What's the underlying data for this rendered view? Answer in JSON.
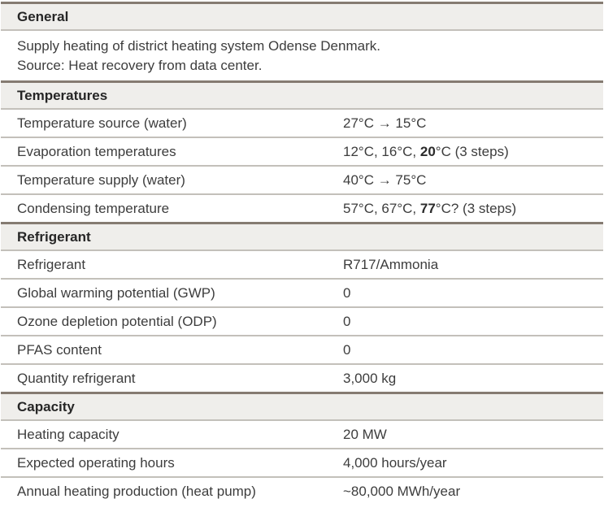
{
  "colors": {
    "header_bg": "#efeeeb",
    "rule_dark": "#857b71",
    "rule_light": "#c3c0ba",
    "text": "#3d3d3d",
    "header_text": "#262626"
  },
  "table": {
    "sections": [
      {
        "id": "general",
        "title": "General",
        "lines": [
          "Supply heating of district heating system Odense Denmark.",
          "Source: Heat recovery from data center."
        ]
      },
      {
        "id": "temperatures",
        "title": "Temperatures",
        "rows": [
          {
            "label": "Temperature source (water)",
            "value_parts": [
              {
                "text": "27°C → 15°C"
              }
            ]
          },
          {
            "label": "Evaporation temperatures",
            "value_parts": [
              {
                "text": "12°C, 16°C, "
              },
              {
                "text": "20",
                "bold": true
              },
              {
                "text": "°C (3 steps)"
              }
            ]
          },
          {
            "label": "Temperature supply (water)",
            "value_parts": [
              {
                "text": "40°C → 75°C"
              }
            ]
          },
          {
            "label": "Condensing temperature",
            "value_parts": [
              {
                "text": "57°C, 67°C, "
              },
              {
                "text": "77",
                "bold": true
              },
              {
                "text": "°C? (3 steps)"
              }
            ]
          }
        ]
      },
      {
        "id": "refrigerant",
        "title": "Refrigerant",
        "rows": [
          {
            "label": "Refrigerant",
            "value": "R717/Ammonia"
          },
          {
            "label": "Global warming potential (GWP)",
            "value": "0"
          },
          {
            "label": "Ozone depletion potential (ODP)",
            "value": "0"
          },
          {
            "label": "PFAS content",
            "value": "0"
          },
          {
            "label": "Quantity refrigerant",
            "value": "3,000 kg"
          }
        ]
      },
      {
        "id": "capacity",
        "title": "Capacity",
        "rows": [
          {
            "label": "Heating capacity",
            "value": "20 MW"
          },
          {
            "label": "Expected operating hours",
            "value": "4,000 hours/year"
          },
          {
            "label": "Annual heating production (heat pump)",
            "value": "~80,000 MWh/year"
          }
        ]
      }
    ]
  }
}
